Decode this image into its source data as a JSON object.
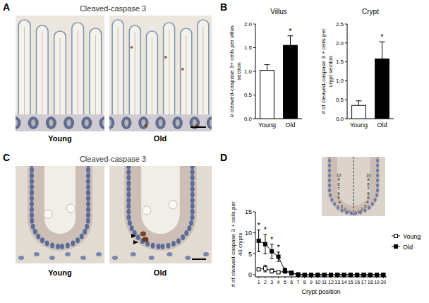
{
  "figure": {
    "panel_labels": [
      "A",
      "B",
      "C",
      "D"
    ],
    "panel_a": {
      "title": "Cleaved-caspase 3",
      "image_labels": [
        "Young",
        "Old"
      ]
    },
    "panel_c": {
      "title": "Cleaved-caspase 3",
      "image_labels": [
        "Young",
        "Old"
      ]
    },
    "inset_positions": [
      1,
      2,
      3,
      4,
      5,
      6,
      7,
      8,
      9,
      10
    ]
  },
  "chart_data": [
    {
      "type": "bar",
      "title": "Villus",
      "y_label": "# cleaved-caspase 3+ cells per villus section",
      "categories": [
        "Young",
        "Old"
      ],
      "values": [
        1.02,
        1.55
      ],
      "errors": [
        0.12,
        0.2
      ],
      "colors": [
        "#ffffff",
        "#000000"
      ],
      "ylim": [
        0,
        2
      ],
      "yticks": [
        {
          "value": 0,
          "label": "0.0"
        },
        0.5,
        {
          "value": 1,
          "label": "1.0"
        },
        1.5,
        {
          "value": 2,
          "label": "2.0"
        }
      ],
      "annotations": [
        {
          "text": "*",
          "category": "Old"
        }
      ]
    },
    {
      "type": "bar",
      "title": "Crypt",
      "y_label": "# of cleaved-caspase 3 + cells per crypt section",
      "categories": [
        "Young",
        "Old"
      ],
      "values": [
        0.35,
        1.58
      ],
      "errors": [
        0.12,
        0.45
      ],
      "colors": [
        "#ffffff",
        "#000000"
      ],
      "ylim": [
        0,
        2.5
      ],
      "yticks": [
        {
          "value": 0,
          "label": "0.0"
        },
        0.5,
        {
          "value": 1,
          "label": "1.0"
        },
        1.5,
        {
          "value": 2,
          "label": "2.0"
        },
        2.5
      ],
      "annotations": [
        {
          "text": "*",
          "category": "Old"
        }
      ]
    },
    {
      "type": "line",
      "y_label": "# of cleaved-caspase 3 + cells per 40 crypts",
      "x_label": "Crypt position",
      "categories": [
        "1",
        "2",
        "3",
        "4",
        "5",
        "6",
        "7",
        "8",
        "9",
        "10",
        "11",
        "12",
        "13",
        "14",
        "15",
        "16",
        "17",
        "18",
        "19",
        "20"
      ],
      "series": [
        {
          "name": "Young",
          "color": "#000000",
          "marker": "open-square",
          "values": [
            1.3,
            1.5,
            0.9,
            0.6,
            0.8,
            0.3,
            0.1,
            0,
            0,
            0,
            0,
            0,
            0,
            0,
            0,
            0,
            0,
            0,
            0,
            0
          ],
          "errors": [
            0.3,
            0.8,
            0.5,
            0.3,
            0.4,
            0.2,
            0.1,
            0,
            0,
            0,
            0,
            0,
            0,
            0,
            0,
            0,
            0,
            0,
            0,
            0
          ]
        },
        {
          "name": "Old",
          "color": "#000000",
          "marker": "square",
          "values": [
            8.1,
            7.3,
            5.6,
            4.3,
            1.0,
            0.5,
            0,
            0,
            0,
            0,
            0,
            0,
            0,
            0,
            0,
            0,
            0,
            0,
            0,
            0
          ],
          "errors": [
            2.6,
            2.3,
            1.7,
            1.1,
            0.6,
            0.4,
            0,
            0,
            0,
            0,
            0,
            0,
            0,
            0,
            0,
            0,
            0,
            0,
            0,
            0
          ]
        }
      ],
      "ylim": [
        -0.5,
        15
      ],
      "yticks": [
        0,
        5,
        10,
        15
      ],
      "legend": "right",
      "annotations": [
        {
          "text": "*",
          "category": "1"
        },
        {
          "text": "*",
          "category": "2"
        },
        {
          "text": "*",
          "category": "3"
        },
        {
          "text": "*",
          "category": "4"
        }
      ]
    }
  ]
}
